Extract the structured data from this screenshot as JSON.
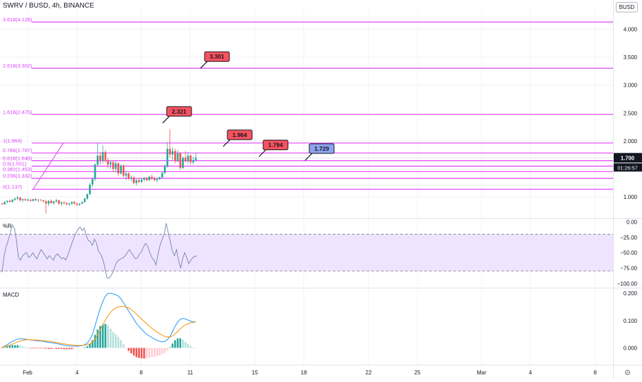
{
  "header": {
    "title": "SWRV / BUSD, 4h, BINANCE",
    "currency_badge": "BUSD"
  },
  "colors": {
    "up": "#26a69a",
    "down": "#ef5350",
    "fib": "#e040fb",
    "wr_line": "#7b8cb4",
    "wr_band": "#efe4ff",
    "macd_line": "#2196f3",
    "signal_line": "#ff8f00",
    "price_badge": "#131722",
    "target_label": "#f7525f",
    "blue_label": "#8ea2ee"
  },
  "chart_data": [
    {
      "type": "candlestick",
      "title": "SWRV / BUSD, 4h, BINANCE",
      "ylim": [
        0.62,
        4.35
      ],
      "y_ticks": [
        "1.000",
        "1.500",
        "2.000",
        "2.500",
        "3.000",
        "3.500",
        "4.000"
      ],
      "y_tick_values": [
        1.0,
        1.5,
        2.0,
        2.5,
        3.0,
        3.5,
        4.0
      ],
      "current_price": "1.700",
      "countdown": "01:26:57",
      "fib_levels": [
        {
          "label": "3.618(4.128)",
          "value": 4.128
        },
        {
          "label": "2.618(3.302)",
          "value": 3.302
        },
        {
          "label": "1.618(2.475)",
          "value": 2.475
        },
        {
          "label": "1(1.964)",
          "value": 1.964
        },
        {
          "label": "0.786(1.787)",
          "value": 1.787
        },
        {
          "label": "0.618(1.648)",
          "value": 1.648
        },
        {
          "label": "0.5(1.551)",
          "value": 1.551
        },
        {
          "label": "0.382(1.453)",
          "value": 1.453
        },
        {
          "label": "0.236(1.332)",
          "value": 1.332
        },
        {
          "label": "0(1.137)",
          "value": 1.137
        }
      ],
      "annotations": [
        {
          "text": "3.301",
          "value": 3.301,
          "color": "red"
        },
        {
          "text": "2.321",
          "value": 2.321,
          "color": "red"
        },
        {
          "text": "1.964",
          "value": 1.964,
          "color": "red"
        },
        {
          "text": "1.794",
          "value": 1.794,
          "color": "red"
        },
        {
          "text": "1.729",
          "value": 1.729,
          "color": "blue"
        }
      ],
      "x_ticks": [
        "Feb",
        "4",
        "8",
        "11",
        "15",
        "18",
        "22",
        "25",
        "Mar",
        "4",
        "8"
      ],
      "candles": [
        [
          0.88,
          0.9,
          0.86,
          0.87
        ],
        [
          0.87,
          0.92,
          0.86,
          0.91
        ],
        [
          0.91,
          0.94,
          0.89,
          0.93
        ],
        [
          0.93,
          0.95,
          0.9,
          0.91
        ],
        [
          0.91,
          0.96,
          0.9,
          0.95
        ],
        [
          0.95,
          0.99,
          0.93,
          0.97
        ],
        [
          0.97,
          1.02,
          0.95,
          0.99
        ],
        [
          0.99,
          1.0,
          0.92,
          0.94
        ],
        [
          0.94,
          0.97,
          0.91,
          0.96
        ],
        [
          0.96,
          0.97,
          0.93,
          0.94
        ],
        [
          0.94,
          0.98,
          0.92,
          0.95
        ],
        [
          0.95,
          0.96,
          0.92,
          0.93
        ],
        [
          0.93,
          0.97,
          0.92,
          0.96
        ],
        [
          0.96,
          0.98,
          0.93,
          0.94
        ],
        [
          0.94,
          0.96,
          0.91,
          0.95
        ],
        [
          0.95,
          0.96,
          0.93,
          0.94
        ],
        [
          0.94,
          0.95,
          0.9,
          0.92
        ],
        [
          0.92,
          0.95,
          0.7,
          0.88
        ],
        [
          0.88,
          0.94,
          0.84,
          0.93
        ],
        [
          0.93,
          0.96,
          0.88,
          0.89
        ],
        [
          0.89,
          0.93,
          0.86,
          0.92
        ],
        [
          0.92,
          0.97,
          0.9,
          0.94
        ],
        [
          0.94,
          0.95,
          0.86,
          0.88
        ],
        [
          0.88,
          0.92,
          0.85,
          0.9
        ],
        [
          0.9,
          0.93,
          0.87,
          0.89
        ],
        [
          0.89,
          0.91,
          0.85,
          0.87
        ],
        [
          0.87,
          0.9,
          0.84,
          0.88
        ],
        [
          0.88,
          0.92,
          0.86,
          0.91
        ],
        [
          0.91,
          0.93,
          0.87,
          0.88
        ],
        [
          0.88,
          0.9,
          0.84,
          0.86
        ],
        [
          0.86,
          0.89,
          0.84,
          0.88
        ],
        [
          0.88,
          0.92,
          0.87,
          0.91
        ],
        [
          0.91,
          0.98,
          0.9,
          0.97
        ],
        [
          0.97,
          1.06,
          0.95,
          1.05
        ],
        [
          1.05,
          1.25,
          1.03,
          1.22
        ],
        [
          1.22,
          1.35,
          1.18,
          1.32
        ],
        [
          1.32,
          1.6,
          1.28,
          1.58
        ],
        [
          1.58,
          1.97,
          1.55,
          1.74
        ],
        [
          1.74,
          1.8,
          1.58,
          1.65
        ],
        [
          1.65,
          1.92,
          1.6,
          1.8
        ],
        [
          1.8,
          1.84,
          1.62,
          1.66
        ],
        [
          1.66,
          1.7,
          1.52,
          1.58
        ],
        [
          1.58,
          1.65,
          1.5,
          1.62
        ],
        [
          1.62,
          1.66,
          1.45,
          1.5
        ],
        [
          1.5,
          1.64,
          1.44,
          1.6
        ],
        [
          1.6,
          1.62,
          1.38,
          1.42
        ],
        [
          1.42,
          1.58,
          1.4,
          1.56
        ],
        [
          1.56,
          1.58,
          1.35,
          1.38
        ],
        [
          1.38,
          1.45,
          1.3,
          1.42
        ],
        [
          1.42,
          1.44,
          1.3,
          1.33
        ],
        [
          1.33,
          1.38,
          1.28,
          1.35
        ],
        [
          1.35,
          1.37,
          1.22,
          1.25
        ],
        [
          1.25,
          1.32,
          1.2,
          1.3
        ],
        [
          1.3,
          1.34,
          1.24,
          1.27
        ],
        [
          1.27,
          1.33,
          1.25,
          1.31
        ],
        [
          1.31,
          1.36,
          1.28,
          1.34
        ],
        [
          1.34,
          1.36,
          1.28,
          1.3
        ],
        [
          1.3,
          1.38,
          1.29,
          1.36
        ],
        [
          1.36,
          1.4,
          1.3,
          1.33
        ],
        [
          1.33,
          1.36,
          1.28,
          1.3
        ],
        [
          1.3,
          1.34,
          1.26,
          1.32
        ],
        [
          1.32,
          1.36,
          1.3,
          1.35
        ],
        [
          1.35,
          1.45,
          1.33,
          1.43
        ],
        [
          1.43,
          1.58,
          1.4,
          1.55
        ],
        [
          1.55,
          1.98,
          1.52,
          1.86
        ],
        [
          1.86,
          2.21,
          1.7,
          1.76
        ],
        [
          1.76,
          1.88,
          1.66,
          1.82
        ],
        [
          1.82,
          1.86,
          1.6,
          1.64
        ],
        [
          1.64,
          1.84,
          1.62,
          1.78
        ],
        [
          1.78,
          1.8,
          1.48,
          1.52
        ],
        [
          1.52,
          1.72,
          1.5,
          1.7
        ],
        [
          1.7,
          1.82,
          1.62,
          1.64
        ],
        [
          1.64,
          1.8,
          1.6,
          1.74
        ],
        [
          1.74,
          1.76,
          1.58,
          1.62
        ],
        [
          1.62,
          1.72,
          1.58,
          1.66
        ],
        [
          1.66,
          1.79,
          1.64,
          1.7
        ]
      ]
    },
    {
      "type": "line",
      "title": "%R",
      "ylim": [
        -107,
        5
      ],
      "y_ticks": [
        "0.00",
        "−25.00",
        "−50.00",
        "−75.00",
        "−100.00"
      ],
      "y_tick_values": [
        0,
        -25,
        -50,
        -75,
        -100
      ],
      "band": [
        -20,
        -80
      ],
      "values": [
        -82,
        -55,
        -40,
        -30,
        -18,
        -5,
        -10,
        -30,
        -58,
        -62,
        -55,
        -52,
        -50,
        -58,
        -55,
        -50,
        -56,
        -60,
        -52,
        -45,
        -50,
        -55,
        -60,
        -55,
        -58,
        -62,
        -55,
        -52,
        -56,
        -60,
        -58,
        -62,
        -55,
        -45,
        -35,
        -25,
        -18,
        -12,
        -8,
        -14,
        -10,
        -22,
        -30,
        -32,
        -38,
        -28,
        -34,
        -48,
        -52,
        -60,
        -72,
        -90,
        -92,
        -88,
        -82,
        -72,
        -65,
        -62,
        -60,
        -58,
        -55,
        -50,
        -45,
        -50,
        -55,
        -60,
        -58,
        -52,
        -48,
        -40,
        -35,
        -40,
        -50,
        -58,
        -62,
        -70,
        -52,
        -38,
        -28,
        -20,
        -2,
        -18,
        -32,
        -48,
        -55,
        -45,
        -62,
        -75,
        -60,
        -50,
        -58,
        -68,
        -62,
        -58,
        -56,
        -55
      ]
    },
    {
      "type": "line",
      "title": "MACD",
      "ylim": [
        -0.062,
        0.218
      ],
      "y_ticks": [
        "0.200",
        "0.100",
        "0.000"
      ],
      "y_tick_values": [
        0.2,
        0.1,
        0.0
      ],
      "macd": [
        0.002,
        0.006,
        0.012,
        0.018,
        0.024,
        0.028,
        0.032,
        0.034,
        0.033,
        0.032,
        0.03,
        0.029,
        0.028,
        0.027,
        0.026,
        0.025,
        0.024,
        0.022,
        0.02,
        0.019,
        0.018,
        0.016,
        0.014,
        0.012,
        0.01,
        0.008,
        0.007,
        0.006,
        0.006,
        0.006,
        0.007,
        0.008,
        0.012,
        0.018,
        0.03,
        0.05,
        0.08,
        0.115,
        0.145,
        0.17,
        0.19,
        0.2,
        0.2,
        0.198,
        0.195,
        0.19,
        0.18,
        0.165,
        0.15,
        0.135,
        0.12,
        0.105,
        0.09,
        0.078,
        0.068,
        0.058,
        0.05,
        0.044,
        0.038,
        0.032,
        0.028,
        0.024,
        0.022,
        0.024,
        0.03,
        0.042,
        0.06,
        0.08,
        0.095,
        0.105,
        0.108,
        0.106,
        0.102,
        0.098,
        0.096,
        0.095
      ],
      "signal": [
        0.003,
        0.004,
        0.007,
        0.01,
        0.014,
        0.018,
        0.022,
        0.025,
        0.028,
        0.029,
        0.03,
        0.03,
        0.029,
        0.029,
        0.028,
        0.027,
        0.026,
        0.025,
        0.024,
        0.023,
        0.021,
        0.02,
        0.018,
        0.016,
        0.015,
        0.013,
        0.012,
        0.011,
        0.01,
        0.009,
        0.009,
        0.009,
        0.01,
        0.012,
        0.015,
        0.022,
        0.032,
        0.048,
        0.065,
        0.085,
        0.102,
        0.118,
        0.13,
        0.14,
        0.146,
        0.15,
        0.152,
        0.152,
        0.15,
        0.146,
        0.14,
        0.133,
        0.124,
        0.115,
        0.106,
        0.097,
        0.088,
        0.08,
        0.072,
        0.065,
        0.058,
        0.052,
        0.046,
        0.042,
        0.04,
        0.04,
        0.044,
        0.052,
        0.06,
        0.07,
        0.078,
        0.084,
        0.088,
        0.092,
        0.094,
        0.095
      ],
      "histogram": [
        -0.001,
        0.002,
        0.005,
        0.008,
        0.01,
        0.01,
        0.01,
        0.009,
        0.005,
        0.003,
        0.0,
        -0.001,
        -0.001,
        -0.002,
        -0.002,
        -0.002,
        -0.002,
        -0.003,
        -0.004,
        -0.004,
        -0.003,
        -0.004,
        -0.004,
        -0.004,
        -0.005,
        -0.005,
        -0.005,
        -0.005,
        -0.004,
        -0.003,
        -0.002,
        -0.001,
        0.002,
        0.006,
        0.015,
        0.028,
        0.048,
        0.067,
        0.08,
        0.085,
        0.088,
        0.082,
        0.07,
        0.058,
        0.049,
        0.04,
        0.028,
        0.013,
        0.0,
        -0.011,
        -0.02,
        -0.028,
        -0.034,
        -0.037,
        -0.038,
        -0.039,
        -0.038,
        -0.036,
        -0.034,
        -0.033,
        -0.03,
        -0.028,
        -0.024,
        -0.018,
        -0.01,
        0.002,
        0.016,
        0.028,
        0.035,
        0.035,
        0.03,
        0.022,
        0.014,
        0.006,
        0.002,
        0.0
      ]
    }
  ]
}
